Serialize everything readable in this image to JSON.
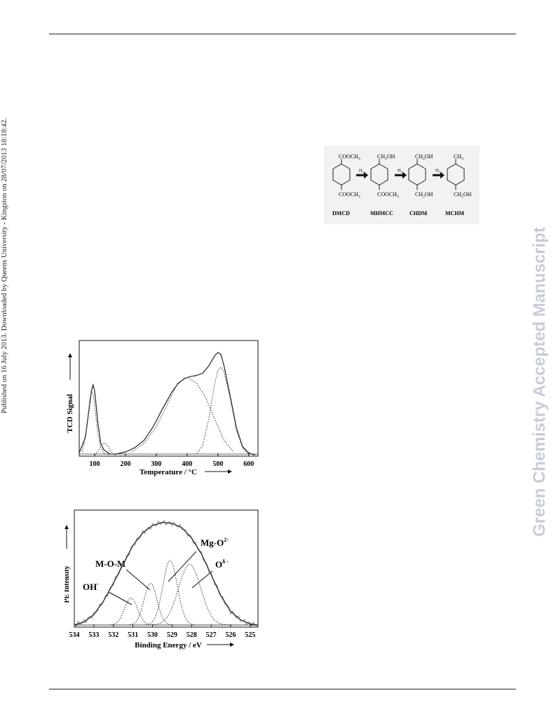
{
  "sidebar_left": "Published on 16 July 2013. Downloaded by Queens University - Kingston on 28/07/2013 18:18:42.",
  "sidebar_right": "Green Chemistry Accepted Manuscript",
  "scheme": {
    "molecules": [
      {
        "top": "COOCH",
        "top_sub": "3",
        "bottom": "COOCH",
        "bottom_sub": "3",
        "name": "DMCD"
      },
      {
        "top": "CH",
        "top_sub": "2",
        "top_tail": "OH",
        "bottom": "COOCH",
        "bottom_sub": "3",
        "name": "MHMCC"
      },
      {
        "top": "CH",
        "top_sub": "2",
        "top_tail": "OH",
        "bottom": "CH",
        "bottom_sub": "2",
        "bottom_tail": "OH",
        "name": "CHDM"
      },
      {
        "top": "CH",
        "top_sub": "3",
        "bottom": "CH",
        "bottom_sub": "2",
        "bottom_tail": "OH",
        "name": "MCHM"
      }
    ],
    "arrow_label": "H",
    "arrow_label_sub": "2"
  },
  "chart_data": [
    {
      "type": "line",
      "xlabel": "Temperature / °C",
      "ylabel": "TCD Signal",
      "xlim": [
        50,
        630
      ],
      "ylim": [
        0,
        1.05
      ],
      "x_ticks": [
        100,
        200,
        300,
        400,
        500,
        600
      ],
      "series": [
        {
          "style": "solid",
          "x": [
            50,
            70,
            85,
            90,
            95,
            100,
            105,
            110,
            120,
            130,
            150,
            170,
            200,
            230,
            260,
            290,
            320,
            350,
            370,
            390,
            410,
            430,
            450,
            470,
            490,
            500,
            510,
            520,
            540,
            560,
            580,
            600,
            620
          ],
          "y": [
            0.03,
            0.18,
            0.52,
            0.63,
            0.68,
            0.62,
            0.48,
            0.33,
            0.12,
            0.06,
            0.02,
            0.02,
            0.04,
            0.08,
            0.15,
            0.28,
            0.45,
            0.61,
            0.69,
            0.74,
            0.76,
            0.77,
            0.79,
            0.86,
            0.96,
            0.99,
            0.97,
            0.86,
            0.57,
            0.27,
            0.09,
            0.03,
            0.01
          ]
        },
        {
          "style": "dotted",
          "x": [
            60,
            75,
            85,
            90,
            95,
            100,
            110,
            120,
            130,
            150
          ],
          "y": [
            0.04,
            0.28,
            0.55,
            0.62,
            0.6,
            0.48,
            0.22,
            0.08,
            0.03,
            0.01
          ]
        },
        {
          "style": "dotted",
          "x": [
            100,
            110,
            120,
            130,
            140,
            150,
            160,
            170
          ],
          "y": [
            0.01,
            0.04,
            0.09,
            0.13,
            0.11,
            0.06,
            0.02,
            0.01
          ]
        },
        {
          "style": "dotted",
          "x": [
            220,
            260,
            300,
            340,
            370,
            400,
            430,
            460,
            490,
            520,
            550
          ],
          "y": [
            0.04,
            0.12,
            0.28,
            0.52,
            0.7,
            0.75,
            0.7,
            0.56,
            0.35,
            0.15,
            0.04
          ]
        },
        {
          "style": "dotted",
          "x": [
            430,
            450,
            470,
            490,
            500,
            510,
            520,
            540,
            560,
            580,
            600
          ],
          "y": [
            0.02,
            0.1,
            0.35,
            0.7,
            0.82,
            0.85,
            0.8,
            0.55,
            0.25,
            0.08,
            0.02
          ]
        }
      ]
    },
    {
      "type": "line",
      "xlabel": "Binding Energy / eV",
      "ylabel": "PE Intensity",
      "xlim": [
        534,
        524.6
      ],
      "ylim": [
        0,
        1.05
      ],
      "x_ticks": [
        534,
        533,
        532,
        531,
        530,
        529,
        528,
        527,
        526,
        525
      ],
      "annotations": [
        {
          "text": "OH",
          "sup": "-"
        },
        {
          "text": "M-O-M",
          "sup": ""
        },
        {
          "text": "Mg-O",
          "sup": "2-"
        },
        {
          "text": "O",
          "sup": "δ -"
        }
      ],
      "series": [
        {
          "style": "noisy",
          "x": [
            534,
            533.5,
            533,
            532.5,
            532,
            531.5,
            531,
            530.5,
            530,
            529.5,
            529,
            528.5,
            528,
            527.5,
            527,
            526.5,
            526,
            525.5,
            525,
            524.6
          ],
          "y": [
            0.02,
            0.05,
            0.12,
            0.25,
            0.42,
            0.6,
            0.78,
            0.9,
            0.97,
            1.0,
            0.99,
            0.95,
            0.85,
            0.7,
            0.5,
            0.3,
            0.15,
            0.07,
            0.03,
            0.02
          ]
        },
        {
          "style": "solid",
          "x": [
            534,
            533.5,
            533,
            532.5,
            532,
            531.5,
            531,
            530.5,
            530,
            529.5,
            529,
            528.5,
            528,
            527.5,
            527,
            526.5,
            526,
            525.5,
            525,
            524.6
          ],
          "y": [
            0.02,
            0.05,
            0.12,
            0.25,
            0.42,
            0.6,
            0.78,
            0.9,
            0.97,
            1.0,
            0.99,
            0.95,
            0.85,
            0.7,
            0.5,
            0.3,
            0.15,
            0.07,
            0.03,
            0.02
          ]
        },
        {
          "style": "dotted",
          "center": 531.1,
          "height": 0.26,
          "width": 0.55
        },
        {
          "style": "dotted",
          "center": 530.1,
          "height": 0.4,
          "width": 0.55
        },
        {
          "style": "dotted",
          "center": 529.1,
          "height": 0.62,
          "width": 0.62
        },
        {
          "style": "dotted",
          "center": 528.1,
          "height": 0.58,
          "width": 0.95
        }
      ]
    }
  ]
}
